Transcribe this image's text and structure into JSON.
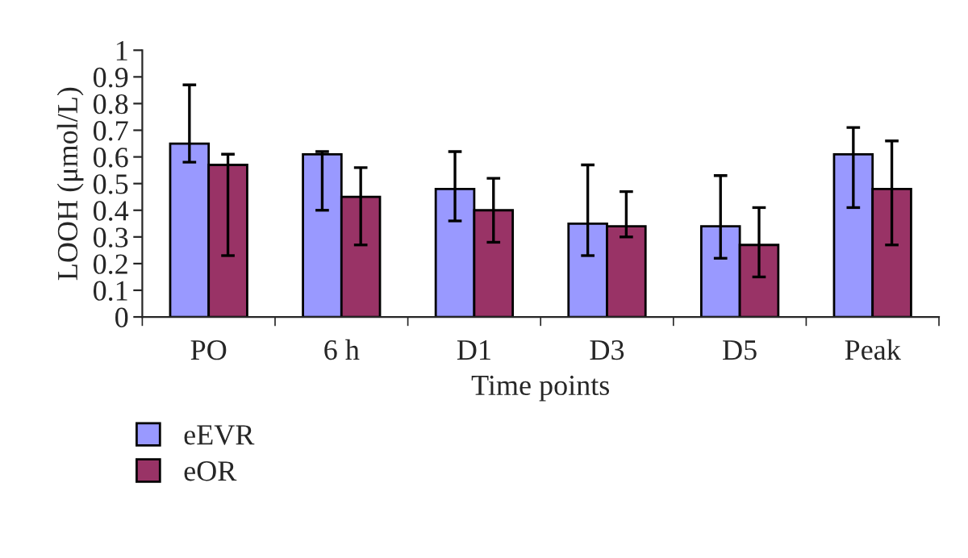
{
  "chart_data": {
    "type": "bar",
    "xlabel": "Time points",
    "ylabel": "LOOH (μmol/L)",
    "categories": [
      "PO",
      "6 h",
      "D1",
      "D3",
      "D5",
      "Peak"
    ],
    "series": [
      {
        "name": "eEVR",
        "color": "#9999ff",
        "values": [
          0.65,
          0.61,
          0.48,
          0.35,
          0.34,
          0.61
        ],
        "errors": [
          [
            0.58,
            0.87
          ],
          [
            0.4,
            0.62
          ],
          [
            0.36,
            0.62
          ],
          [
            0.23,
            0.57
          ],
          [
            0.22,
            0.53
          ],
          [
            0.41,
            0.71
          ]
        ]
      },
      {
        "name": "eOR",
        "color": "#993366",
        "values": [
          0.57,
          0.45,
          0.4,
          0.34,
          0.27,
          0.48
        ],
        "errors": [
          [
            0.23,
            0.61
          ],
          [
            0.27,
            0.56
          ],
          [
            0.28,
            0.52
          ],
          [
            0.3,
            0.47
          ],
          [
            0.15,
            0.41
          ],
          [
            0.27,
            0.66
          ]
        ]
      }
    ],
    "ylim": [
      0,
      1
    ],
    "yticks": [
      0,
      0.1,
      0.2,
      0.3,
      0.4,
      0.5,
      0.6,
      0.7,
      0.8,
      0.9,
      1
    ],
    "legend": "bottom left",
    "grid": false
  }
}
